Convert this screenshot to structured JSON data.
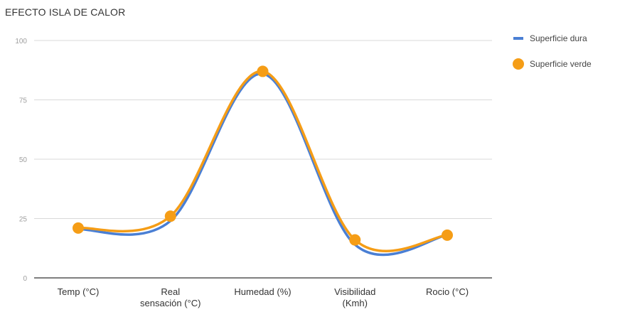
{
  "chart_data": {
    "type": "line",
    "title": "EFECTO ISLA DE CALOR",
    "categories": [
      [
        "Temp (°C)"
      ],
      [
        "Real",
        "sensación (°C)"
      ],
      [
        "Humedad (%)"
      ],
      [
        "Visibilidad",
        "(Kmh)"
      ],
      [
        "Rocio (°C)"
      ]
    ],
    "series": [
      {
        "name": "Superficie dura",
        "values": [
          20.5,
          24,
          86,
          14,
          18
        ],
        "color": "#4a7fd4",
        "marker": "none"
      },
      {
        "name": "Superficie verde",
        "values": [
          21,
          26,
          87,
          16,
          18
        ],
        "color": "#f59d16",
        "marker": "circle"
      }
    ],
    "ylim": [
      0,
      100
    ],
    "yticks": [
      0,
      25,
      50,
      75,
      100
    ],
    "grid": true,
    "smooth": true,
    "legend_position": "right"
  }
}
